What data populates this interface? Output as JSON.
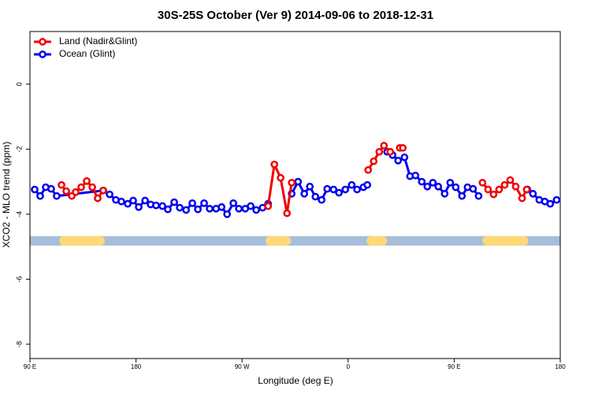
{
  "chart_data": {
    "type": "line",
    "title": "30S-25S October (Ver 9)   2014-09-06 to 2018-12-31",
    "xlabel": "Longitude (deg E)",
    "ylabel": "XCO2 - MLO trend (ppm)",
    "xlim": [
      90,
      540
    ],
    "ylim": [
      -8.44,
      1.62
    ],
    "xticks": [
      {
        "value": 90,
        "label": "90 E"
      },
      {
        "value": 180,
        "label": "180"
      },
      {
        "value": 270,
        "label": "90 W"
      },
      {
        "value": 360,
        "label": "0"
      },
      {
        "value": 450,
        "label": "90 E"
      },
      {
        "value": 540,
        "label": "180"
      }
    ],
    "yticks": [
      0,
      -2,
      -4,
      -6,
      -8
    ],
    "legend": "top-left",
    "land_band": {
      "value": -4.82,
      "ocean_color": "#a6bddb",
      "land_color": "#fed976",
      "land_spans": [
        [
          114.8,
          153.6
        ],
        [
          290,
          311.5
        ],
        [
          375.7,
          393.1
        ],
        [
          474,
          512.9
        ]
      ]
    },
    "series": [
      {
        "name": "Land (Nadir&Glint)",
        "color": "#ee0000",
        "x": [
          116.8,
          120.8,
          125.5,
          128.8,
          133.5,
          138.2,
          142.9,
          147.5,
          152.2,
          null,
          292.1,
          297.4,
          302.7,
          308.1,
          312.1,
          null,
          377,
          381.7,
          386.4,
          390.4,
          395.7,
          null,
          403.8,
          406.4,
          null,
          474,
          478.7,
          483.4,
          488.1,
          492.8,
          497.5,
          502.2,
          507.6,
          511.5
        ],
        "values": [
          -3.1,
          -3.29,
          -3.44,
          -3.32,
          -3.17,
          -2.98,
          -3.17,
          -3.51,
          -3.27,
          null,
          -3.75,
          -2.47,
          -2.88,
          -3.97,
          -3.03,
          null,
          -2.64,
          -2.37,
          -2.08,
          -1.89,
          -2.08,
          null,
          -1.96,
          -1.96,
          null,
          -3.03,
          -3.24,
          -3.39,
          -3.24,
          -3.1,
          -2.95,
          -3.15,
          -3.51,
          -3.24
        ]
      },
      {
        "name": "Ocean (Glint)",
        "color": "#0000ee",
        "x": [
          94,
          98.7,
          103.4,
          108,
          112.7,
          152.2,
          157.6,
          162.9,
          167.6,
          173,
          177.6,
          182.3,
          187.7,
          192.4,
          197,
          202.4,
          207,
          212.4,
          217.1,
          222.5,
          227.8,
          232.5,
          237.8,
          242.5,
          247.9,
          252.6,
          257.3,
          262.6,
          267.3,
          272.7,
          277.3,
          282,
          287.4,
          292.1,
          null,
          312.1,
          317.5,
          322.8,
          327.5,
          332.2,
          337.5,
          342.2,
          347.6,
          352.2,
          357.6,
          363,
          367.6,
          373,
          376.3,
          null,
          393.1,
          397.7,
          402.4,
          407.8,
          412.5,
          417.1,
          422.5,
          427.2,
          431.9,
          436.5,
          441.9,
          446.6,
          451.3,
          456.6,
          461.3,
          466,
          470.7,
          null,
          512.1,
          516.8,
          522.2,
          526.9,
          531.5,
          536.9
        ],
        "values": [
          -3.24,
          -3.44,
          -3.17,
          -3.22,
          -3.44,
          -3.27,
          -3.39,
          -3.56,
          -3.61,
          -3.68,
          -3.58,
          -3.78,
          -3.58,
          -3.7,
          -3.73,
          -3.75,
          -3.85,
          -3.63,
          -3.8,
          -3.87,
          -3.66,
          -3.85,
          -3.66,
          -3.83,
          -3.83,
          -3.78,
          -4.0,
          -3.66,
          -3.83,
          -3.83,
          -3.75,
          -3.87,
          -3.8,
          -3.68,
          null,
          -3.37,
          -3.0,
          -3.37,
          -3.15,
          -3.46,
          -3.56,
          -3.22,
          -3.24,
          -3.34,
          -3.24,
          -3.1,
          -3.24,
          -3.17,
          -3.1,
          null,
          -2.08,
          -2.18,
          -2.35,
          -2.25,
          -2.83,
          -2.81,
          -3.0,
          -3.15,
          -3.03,
          -3.15,
          -3.37,
          -3.03,
          -3.17,
          -3.44,
          -3.17,
          -3.22,
          -3.44,
          null,
          -3.24,
          -3.37,
          -3.56,
          -3.61,
          -3.68,
          -3.56
        ]
      }
    ]
  }
}
